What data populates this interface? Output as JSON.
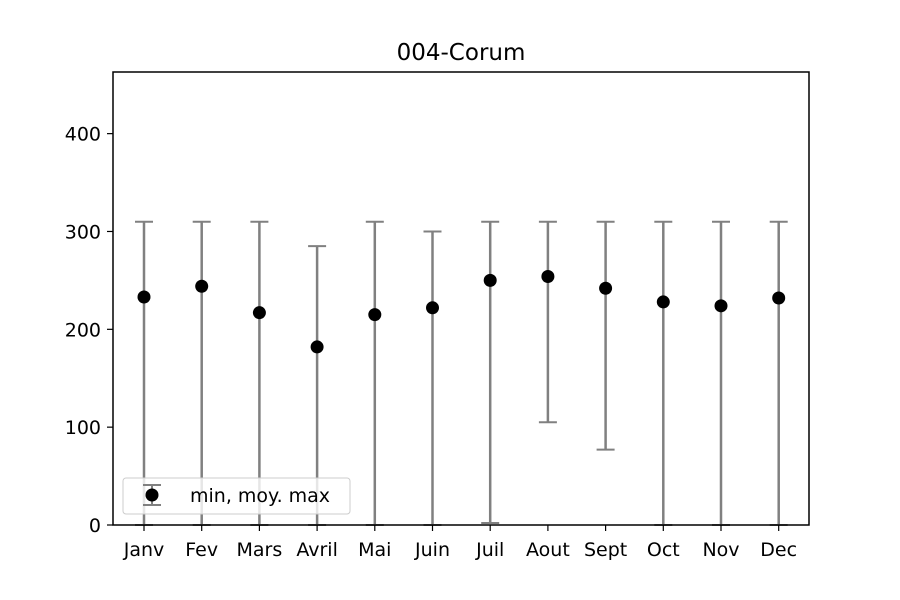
{
  "chart_data": {
    "type": "errorbar",
    "title": "004-Corum",
    "categories": [
      "Janv",
      "Fev",
      "Mars",
      "Avril",
      "Mai",
      "Juin",
      "Juil",
      "Aout",
      "Sept",
      "Oct",
      "Nov",
      "Dec"
    ],
    "series": [
      {
        "name": "min, moy. max",
        "mean": [
          233,
          244,
          217,
          182,
          215,
          222,
          250,
          254,
          242,
          228,
          224,
          232
        ],
        "min": [
          0,
          0,
          0,
          0,
          0,
          0,
          2,
          105,
          77,
          0,
          0,
          0
        ],
        "max": [
          310,
          310,
          310,
          285,
          310,
          300,
          310,
          310,
          310,
          310,
          310,
          310
        ]
      }
    ],
    "ylim": [
      0,
      463
    ],
    "yticks": [
      0,
      100,
      200,
      300,
      400
    ],
    "xlabel": "",
    "ylabel": "",
    "grid": false,
    "legend": "lower-left",
    "colors": {
      "marker": "#000000",
      "errorbar": "#808080",
      "axis": "#000000"
    }
  }
}
